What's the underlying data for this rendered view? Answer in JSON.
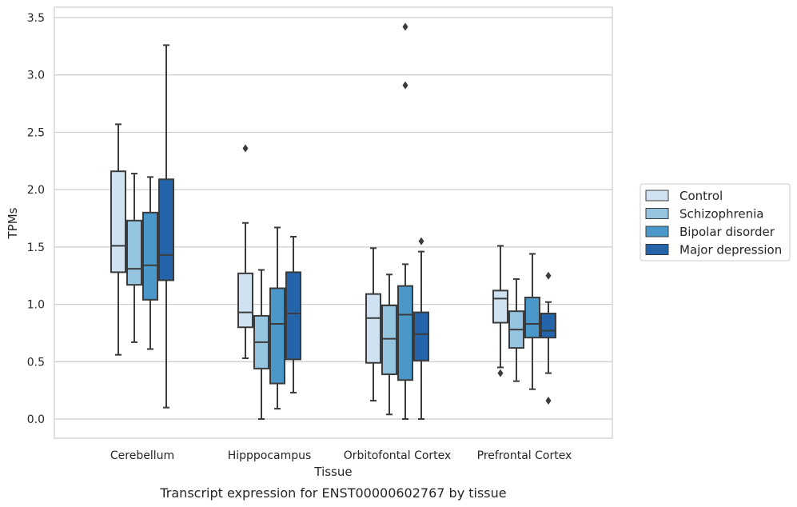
{
  "caption": "Transcript expression for ENST00000602767 by tissue",
  "chart_data": {
    "type": "box",
    "title": "",
    "xlabel": "Tissue",
    "ylabel": "TPMs",
    "ylim": [
      -0.16,
      3.6
    ],
    "yticks": [
      "0.0",
      "0.5",
      "1.0",
      "1.5",
      "2.0",
      "2.5",
      "3.0",
      "3.5"
    ],
    "grid": "horizontal",
    "legend_position": "right",
    "categories": [
      "Cerebellum",
      "Hipppocampus",
      "Orbitofontal Cortex",
      "Prefrontal Cortex"
    ],
    "series": [
      {
        "name": "Control",
        "color": "#d0e1f2",
        "boxes": [
          {
            "whislo": 0.56,
            "q1": 1.28,
            "med": 1.51,
            "q3": 2.16,
            "whishi": 2.57,
            "fliers": []
          },
          {
            "whislo": 0.53,
            "q1": 0.8,
            "med": 0.93,
            "q3": 1.27,
            "whishi": 1.71,
            "fliers": [
              2.36
            ]
          },
          {
            "whislo": 0.16,
            "q1": 0.49,
            "med": 0.88,
            "q3": 1.09,
            "whishi": 1.49,
            "fliers": []
          },
          {
            "whislo": 0.45,
            "q1": 0.84,
            "med": 1.05,
            "q3": 1.12,
            "whishi": 1.51,
            "fliers": [
              0.4
            ]
          }
        ]
      },
      {
        "name": "Schizophrenia",
        "color": "#94c4df",
        "boxes": [
          {
            "whislo": 0.67,
            "q1": 1.17,
            "med": 1.31,
            "q3": 1.73,
            "whishi": 2.14,
            "fliers": []
          },
          {
            "whislo": 0.0,
            "q1": 0.44,
            "med": 0.67,
            "q3": 0.9,
            "whishi": 1.3,
            "fliers": []
          },
          {
            "whislo": 0.04,
            "q1": 0.39,
            "med": 0.7,
            "q3": 0.99,
            "whishi": 1.26,
            "fliers": []
          },
          {
            "whislo": 0.33,
            "q1": 0.62,
            "med": 0.78,
            "q3": 0.94,
            "whishi": 1.22,
            "fliers": []
          }
        ]
      },
      {
        "name": "Bipolar disorder",
        "color": "#4a98c9",
        "boxes": [
          {
            "whislo": 0.61,
            "q1": 1.04,
            "med": 1.34,
            "q3": 1.8,
            "whishi": 2.11,
            "fliers": []
          },
          {
            "whislo": 0.09,
            "q1": 0.31,
            "med": 0.83,
            "q3": 1.14,
            "whishi": 1.67,
            "fliers": []
          },
          {
            "whislo": 0.0,
            "q1": 0.34,
            "med": 0.91,
            "q3": 1.16,
            "whishi": 1.35,
            "fliers": [
              2.91,
              3.42
            ]
          },
          {
            "whislo": 0.26,
            "q1": 0.71,
            "med": 0.83,
            "q3": 1.06,
            "whishi": 1.44,
            "fliers": []
          }
        ]
      },
      {
        "name": "Major depression",
        "color": "#2464ab",
        "boxes": [
          {
            "whislo": 0.1,
            "q1": 1.21,
            "med": 1.43,
            "q3": 2.09,
            "whishi": 3.26,
            "fliers": []
          },
          {
            "whislo": 0.23,
            "q1": 0.52,
            "med": 0.92,
            "q3": 1.28,
            "whishi": 1.59,
            "fliers": []
          },
          {
            "whislo": 0.0,
            "q1": 0.51,
            "med": 0.74,
            "q3": 0.93,
            "whishi": 1.46,
            "fliers": [
              1.55
            ]
          },
          {
            "whislo": 0.4,
            "q1": 0.71,
            "med": 0.77,
            "q3": 0.92,
            "whishi": 1.02,
            "fliers": [
              1.25,
              0.16
            ]
          }
        ]
      }
    ]
  }
}
